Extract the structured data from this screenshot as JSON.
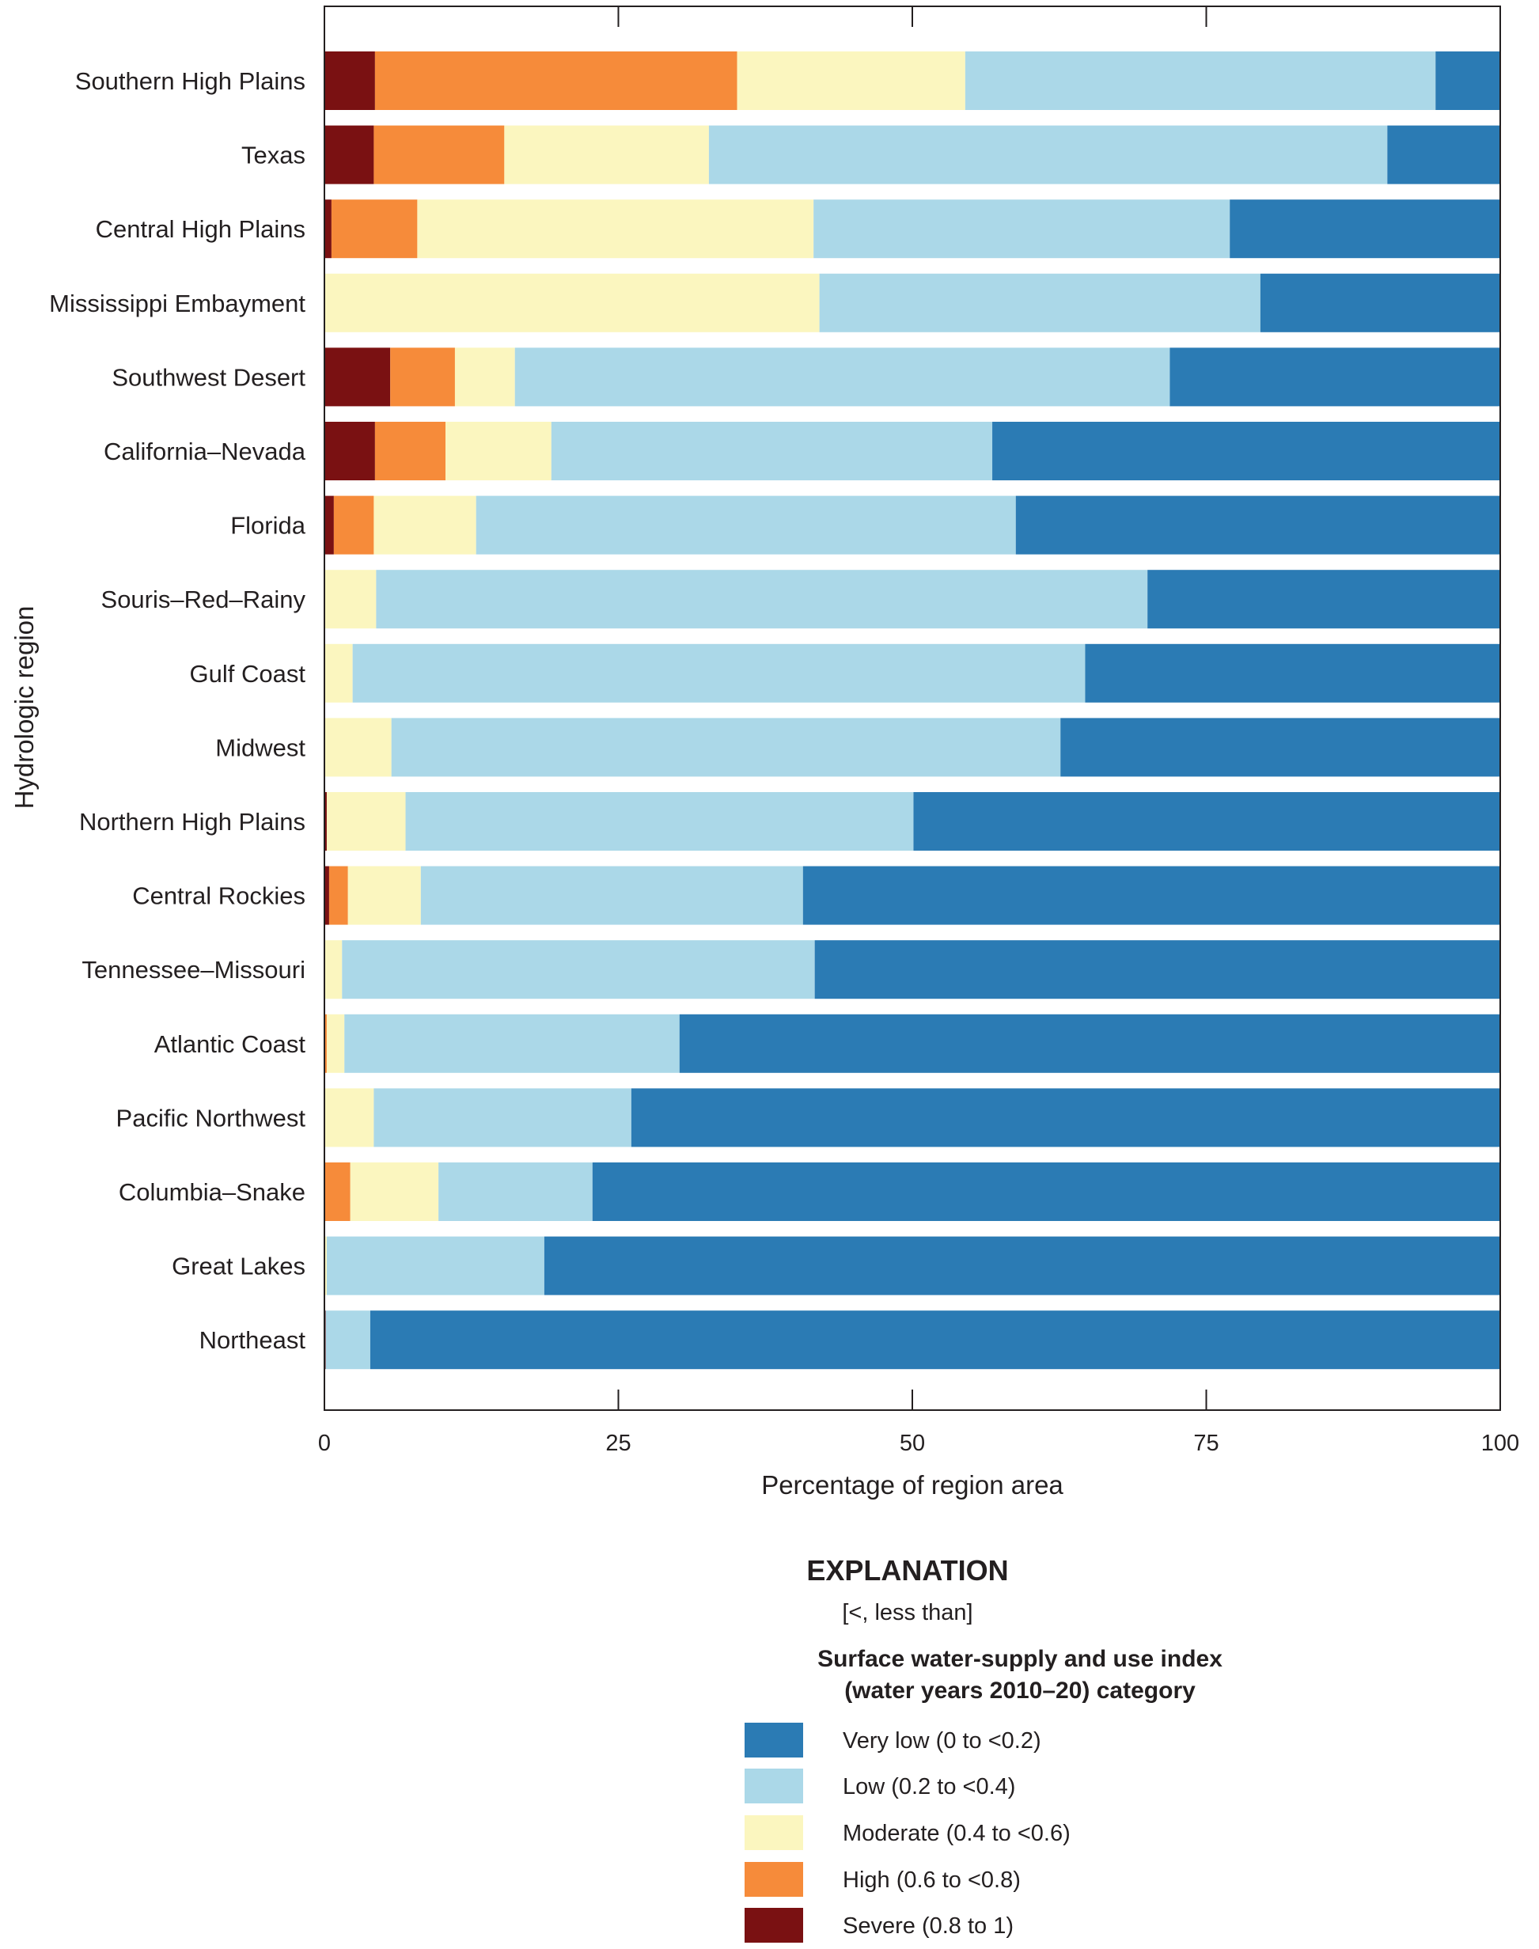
{
  "chart_data": {
    "type": "bar",
    "orientation": "horizontal",
    "stacked": true,
    "xlabel": "Percentage of region area",
    "ylabel": "Hydrologic region",
    "xlim": [
      0,
      100
    ],
    "xticks": [
      "0",
      "25",
      "50",
      "75",
      "100"
    ],
    "grid": false,
    "categories": [
      "Southern High Plains",
      "Texas",
      "Central High Plains",
      "Mississippi Embayment",
      "Southwest Desert",
      "California–Nevada",
      "Florida",
      "Souris–Red–Rainy",
      "Gulf Coast",
      "Midwest",
      "Northern High Plains",
      "Central Rockies",
      "Tennessee–Missouri",
      "Atlantic Coast",
      "Pacific Northwest",
      "Columbia–Snake",
      "Great Lakes",
      "Northeast"
    ],
    "series": [
      {
        "name": "Severe (0.8 to 1)",
        "color": "#7a1112",
        "values": [
          4.3,
          4.2,
          0.6,
          0,
          5.6,
          4.3,
          0.8,
          0,
          0,
          0,
          0.2,
          0.4,
          0,
          0,
          0,
          0,
          0,
          0.1
        ]
      },
      {
        "name": "High (0.6 to <0.8)",
        "color": "#f68b3a",
        "values": [
          30.8,
          11.1,
          7.3,
          0,
          5.5,
          6.0,
          3.4,
          0,
          0,
          0,
          0,
          1.6,
          0,
          0.2,
          0,
          2.2,
          0,
          0
        ]
      },
      {
        "name": "Moderate (0.4 to <0.6)",
        "color": "#fbf6bf",
        "values": [
          19.4,
          17.4,
          33.7,
          42.1,
          5.1,
          9.0,
          8.7,
          4.4,
          2.4,
          5.7,
          6.7,
          6.2,
          1.5,
          1.5,
          4.2,
          7.5,
          0.2,
          0
        ]
      },
      {
        "name": "Low (0.2 to <0.4)",
        "color": "#abd8e8",
        "values": [
          40.0,
          57.7,
          35.4,
          37.5,
          55.7,
          37.5,
          45.9,
          65.6,
          62.3,
          56.9,
          43.2,
          32.5,
          40.2,
          28.5,
          21.9,
          13.1,
          18.5,
          3.8
        ]
      },
      {
        "name": "Very low (0 to <0.2)",
        "color": "#2b7bb4",
        "values": [
          5.5,
          9.6,
          23.0,
          20.4,
          28.1,
          43.2,
          41.2,
          30.0,
          35.3,
          37.4,
          49.9,
          59.3,
          58.3,
          69.8,
          73.9,
          77.2,
          81.3,
          96.1
        ]
      }
    ],
    "legend": {
      "title": "EXPLANATION",
      "note": "[<, less than]",
      "subtitle_line1": "Surface water-supply and use index",
      "subtitle_line2": "(water years 2010–20) category",
      "order": [
        4,
        3,
        2,
        1,
        0
      ],
      "placement": "bottom"
    }
  }
}
